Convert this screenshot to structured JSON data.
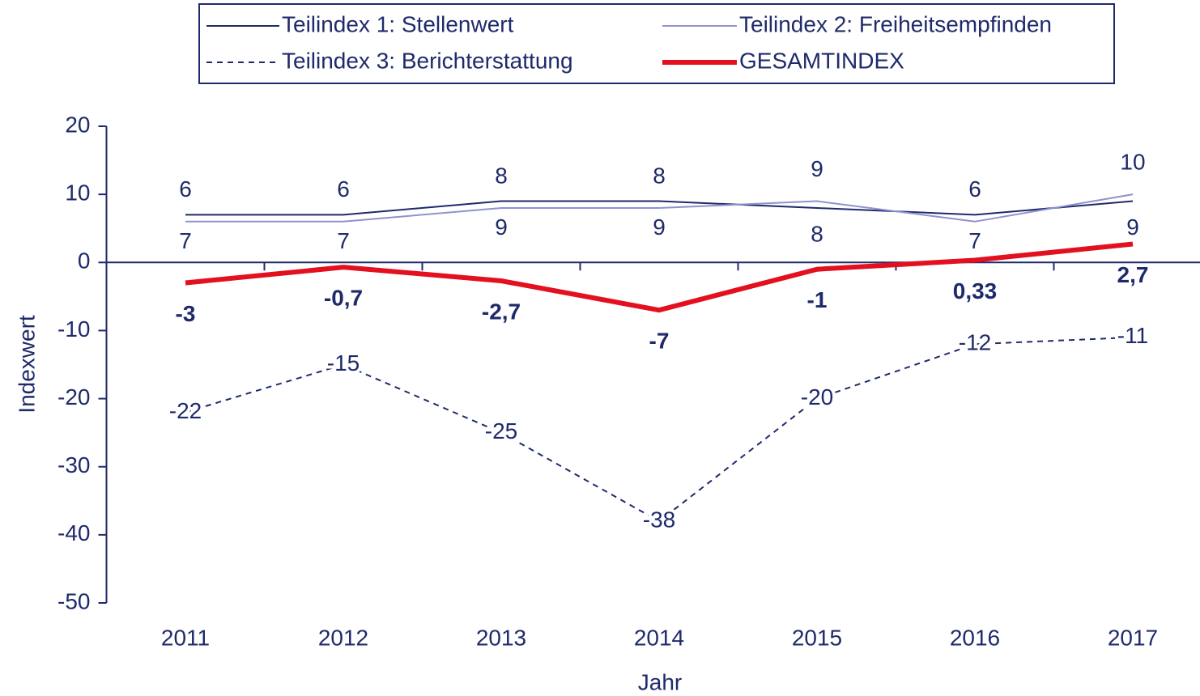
{
  "chart_data": {
    "type": "line",
    "xlabel": "Jahr",
    "ylabel": "Indexwert",
    "categories": [
      "2011",
      "2012",
      "2013",
      "2014",
      "2015",
      "2016",
      "2017"
    ],
    "ylim": [
      -50,
      20
    ],
    "yticks": [
      -50,
      -40,
      -30,
      -20,
      -10,
      0,
      10,
      20
    ],
    "series": [
      {
        "name": "Teilindex 1: Stellenwert",
        "color": "#1f2a6b",
        "line_width": 2,
        "values": [
          7,
          7,
          9,
          9,
          8,
          7,
          9
        ]
      },
      {
        "name": "Teilindex 2: Freiheitsempfinden",
        "color": "#8f93cc",
        "line_width": 2,
        "values": [
          6,
          6,
          8,
          8,
          9,
          6,
          10
        ]
      },
      {
        "name": "Teilindex 3: Berichterstattung",
        "color": "#1f2a6b",
        "line_width": 2,
        "dashed": true,
        "values": [
          -22,
          -15,
          -25,
          -38,
          -20,
          -12,
          -11
        ]
      },
      {
        "name": "GESAMTINDEX",
        "color": "#e3101f",
        "line_width": 6,
        "values": [
          -3,
          -0.7,
          -2.7,
          -7,
          -1,
          0.33,
          2.7
        ],
        "value_labels": [
          "-3",
          "-0,7",
          "-2,7",
          "-7",
          "-1",
          "0,33",
          "2,7"
        ]
      }
    ]
  }
}
